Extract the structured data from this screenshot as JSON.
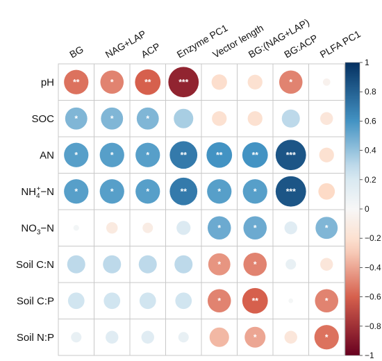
{
  "chart_data": {
    "type": "heatmap",
    "subtype": "correlation-circle-matrix",
    "columns": [
      "BG",
      "NAG+LAP",
      "ACP",
      "Enzyme PC1",
      "Vector length",
      "BG:(NAG+LAP)",
      "BG:ACP",
      "PLFA PC1"
    ],
    "rows": [
      {
        "label": "pH",
        "sub": "",
        "sup": "",
        "suffix": "",
        "values": [
          -0.55,
          -0.5,
          -0.6,
          -0.85,
          -0.22,
          -0.2,
          -0.5,
          -0.05
        ],
        "sig": [
          "**",
          "*",
          "**",
          "***",
          "",
          "",
          "*",
          ""
        ]
      },
      {
        "label": "SOC",
        "sub": "",
        "sup": "",
        "suffix": "",
        "values": [
          0.45,
          0.45,
          0.45,
          0.35,
          -0.2,
          -0.2,
          0.3,
          -0.15
        ],
        "sig": [
          "*",
          "*",
          "*",
          "",
          "",
          "",
          "",
          ""
        ]
      },
      {
        "label": "AN",
        "sub": "",
        "sup": "",
        "suffix": "",
        "values": [
          0.55,
          0.55,
          0.55,
          0.7,
          0.6,
          0.6,
          0.85,
          -0.2
        ],
        "sig": [
          "*",
          "*",
          "*",
          "**",
          "**",
          "**",
          "***",
          ""
        ]
      },
      {
        "label": "NH",
        "sub": "4",
        "sup": "+",
        "suffix": "−N",
        "values": [
          0.55,
          0.55,
          0.55,
          0.7,
          0.55,
          0.55,
          0.85,
          -0.25
        ],
        "sig": [
          "*",
          "*",
          "*",
          "**",
          "*",
          "*",
          "***",
          ""
        ]
      },
      {
        "label": "NO",
        "sub": "3",
        "sup": "",
        "suffix": "−N",
        "values": [
          0.03,
          -0.12,
          -0.1,
          0.18,
          0.5,
          0.5,
          0.15,
          0.45
        ],
        "sig": [
          "",
          "",
          "",
          "",
          "*",
          "*",
          "",
          "*"
        ]
      },
      {
        "label": "Soil C:N",
        "sub": "",
        "sup": "",
        "suffix": "",
        "values": [
          0.3,
          0.3,
          0.3,
          0.3,
          -0.45,
          -0.5,
          0.1,
          -0.15
        ],
        "sig": [
          "",
          "",
          "",
          "",
          "*",
          "*",
          "",
          ""
        ]
      },
      {
        "label": "Soil C:P",
        "sub": "",
        "sup": "",
        "suffix": "",
        "values": [
          0.25,
          0.25,
          0.25,
          0.25,
          -0.5,
          -0.6,
          0.02,
          -0.5
        ],
        "sig": [
          "",
          "",
          "",
          "",
          "*",
          "**",
          "",
          "*"
        ]
      },
      {
        "label": "Soil N:P",
        "sub": "",
        "sup": "",
        "suffix": "",
        "values": [
          0.1,
          0.15,
          0.15,
          0.1,
          -0.35,
          -0.4,
          -0.15,
          -0.55
        ],
        "sig": [
          "",
          "",
          "",
          "",
          "",
          "*",
          "",
          "*"
        ]
      }
    ],
    "colorbar": {
      "range": [
        -1,
        1
      ],
      "ticks": [
        "1",
        "0.8",
        "0.6",
        "0.4",
        "0.2",
        "0",
        "−0.2",
        "−0.4",
        "−0.6",
        "−0.8",
        "−1"
      ],
      "colors": {
        "neg_strong": "#67001f",
        "neg_mid": "#d6604d",
        "neg_light": "#fddbc7",
        "zero": "#f7f7f7",
        "pos_light": "#d1e5f0",
        "pos_mid": "#4393c3",
        "pos_strong": "#053061"
      }
    },
    "grid": true,
    "legend_position": "right"
  }
}
